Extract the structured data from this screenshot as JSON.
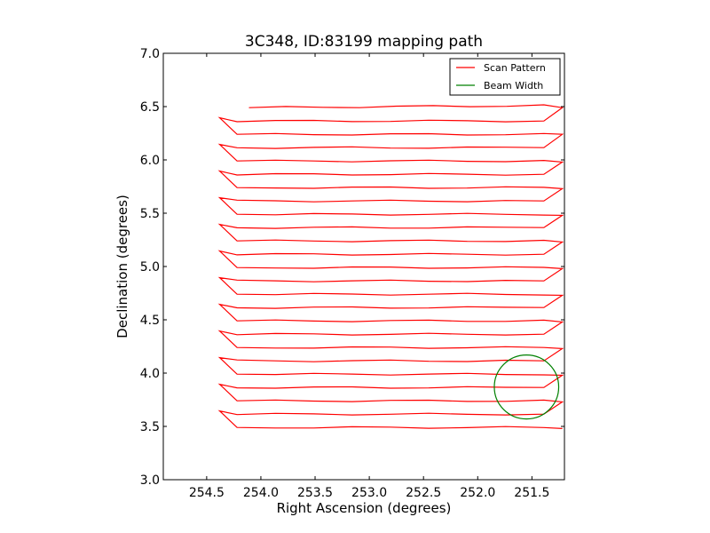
{
  "chart_data": {
    "type": "line",
    "title": "3C348, ID:83199 mapping path",
    "xlabel": "Right Ascension (degrees)",
    "ylabel": "Declination (degrees)",
    "xlim": [
      254.9,
      251.2
    ],
    "ylim": [
      3.0,
      7.0
    ],
    "x_inverted": true,
    "grid": false,
    "legend_position": "top-right",
    "xticks": [
      "254.5",
      "254.0",
      "253.5",
      "253.0",
      "252.5",
      "252.0",
      "251.5"
    ],
    "xtick_values": [
      254.5,
      254.0,
      253.5,
      253.0,
      252.5,
      252.0,
      251.5
    ],
    "yticks": [
      "3.0",
      "3.5",
      "4.0",
      "4.5",
      "5.0",
      "5.5",
      "6.0",
      "6.5",
      "7.0"
    ],
    "ytick_values": [
      3.0,
      3.5,
      4.0,
      4.5,
      5.0,
      5.5,
      6.0,
      6.5,
      7.0
    ],
    "scan": {
      "ra_left_turn": 254.38,
      "ra_left_line": 254.22,
      "ra_right_line": 251.39,
      "ra_right_turn": 251.22,
      "ra_start": 254.11,
      "dec_start": 6.49,
      "dec_top": 6.49,
      "dec_bottom": 3.49,
      "dec_step": 0.125
    },
    "series": [
      {
        "name": "Scan Pattern",
        "color": "#ff0000"
      },
      {
        "name": "Beam Width",
        "color": "#008000",
        "center": [
          251.55,
          3.87
        ],
        "radius_deg": 0.3
      }
    ]
  }
}
